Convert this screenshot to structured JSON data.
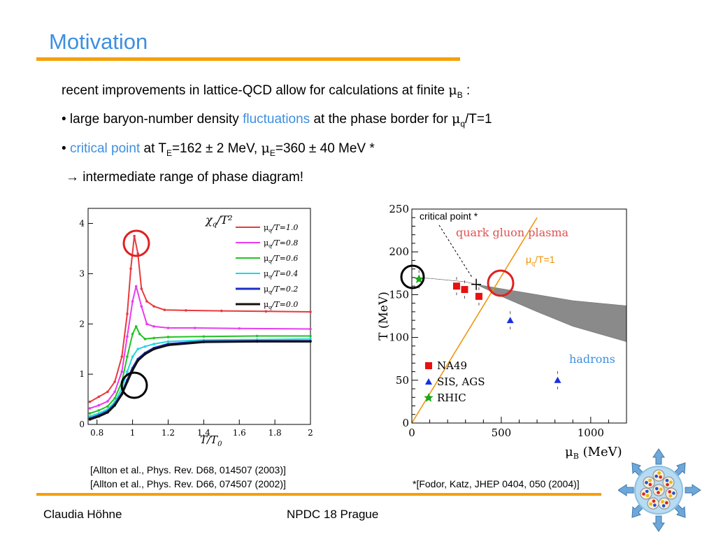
{
  "slide": {
    "title": "Motivation",
    "line1": "recent improvements in lattice-QCD allow for calculations at finite",
    "line1_mu": "μ",
    "line1_sub": "B",
    "line1_end": " :",
    "line2_pre": "• large baryon-number density ",
    "line2_hl": "fluctuations",
    "line2_post": " at the phase border for ",
    "line2_mu": "μ",
    "line2_sub": "q",
    "line2_end": "/T=1",
    "line3_pre": "• ",
    "line3_hl": "critical point",
    "line3_a": " at T",
    "line3_sub1": "E",
    "line3_b": "=162 ± 2 MeV, ",
    "line3_mu": "μ",
    "line3_sub2": "E",
    "line3_c": "=360 ± 40 MeV *",
    "line4": "→ intermediate range of phase diagram!",
    "cite1": "[Allton et al., Phys. Rev. D68, 014507 (2003)]",
    "cite2": "[Allton et al., Phys. Rev. D66, 074507 (2002)]",
    "cite3": "*[Fodor, Katz, JHEP 0404, 050  (2004)]",
    "footer_left": "Claudia Höhne",
    "footer_center": "NPDC 18 Prague"
  },
  "colors": {
    "accent_blue": "#3d8fe0",
    "accent_orange": "#f5a000",
    "circle_red": "#e02020",
    "circle_black": "#000000"
  },
  "chart_data": [
    {
      "type": "line",
      "ylabel_main": "χ",
      "ylabel_sub": "q",
      "ylabel_rest": "/T²",
      "xlabel_main": "T/T",
      "xlabel_sub": "0",
      "xlim": [
        0.75,
        2.0
      ],
      "ylim": [
        0,
        4.3
      ],
      "xticks": [
        "0.8",
        "1",
        "1.2",
        "1.4",
        "1.6",
        "1.8",
        "2"
      ],
      "xtick_values": [
        0.8,
        1.0,
        1.2,
        1.4,
        1.6,
        1.8,
        2.0
      ],
      "yticks": [
        "0",
        "1",
        "2",
        "3",
        "4"
      ],
      "ytick_values": [
        0,
        1,
        2,
        3,
        4
      ],
      "legend_position": "top-right",
      "series": [
        {
          "name_mu": "μ",
          "name_sub": "q",
          "name_rest": "/T=1.0",
          "color": "#e8393d",
          "x": [
            0.76,
            0.81,
            0.86,
            0.9,
            0.94,
            0.97,
            0.99,
            1.01,
            1.03,
            1.05,
            1.08,
            1.12,
            1.18,
            1.3,
            1.5,
            1.75,
            2.0
          ],
          "y": [
            0.45,
            0.55,
            0.65,
            0.85,
            1.35,
            2.2,
            3.1,
            3.75,
            3.4,
            2.7,
            2.45,
            2.35,
            2.28,
            2.27,
            2.26,
            2.25,
            2.24
          ]
        },
        {
          "name_mu": "μ",
          "name_sub": "q",
          "name_rest": "/T=0.8",
          "color": "#e83cf0",
          "x": [
            0.76,
            0.81,
            0.86,
            0.9,
            0.94,
            0.97,
            1.0,
            1.02,
            1.05,
            1.08,
            1.12,
            1.2,
            1.35,
            1.6,
            2.0
          ],
          "y": [
            0.32,
            0.38,
            0.46,
            0.65,
            1.05,
            1.75,
            2.45,
            2.75,
            2.35,
            2.0,
            1.95,
            1.92,
            1.92,
            1.91,
            1.9
          ]
        },
        {
          "name_mu": "μ",
          "name_sub": "q",
          "name_rest": "/T=0.6",
          "color": "#22c322",
          "x": [
            0.76,
            0.81,
            0.86,
            0.9,
            0.94,
            0.97,
            1.0,
            1.02,
            1.04,
            1.07,
            1.12,
            1.2,
            1.4,
            1.7,
            2.0
          ],
          "y": [
            0.22,
            0.28,
            0.36,
            0.52,
            0.85,
            1.35,
            1.8,
            1.95,
            1.8,
            1.7,
            1.72,
            1.74,
            1.75,
            1.76,
            1.76
          ]
        },
        {
          "name_mu": "μ",
          "name_sub": "q",
          "name_rest": "/T=0.4",
          "color": "#1ed8e0",
          "x": [
            0.76,
            0.81,
            0.86,
            0.9,
            0.94,
            0.97,
            1.0,
            1.03,
            1.07,
            1.12,
            1.2,
            1.4,
            1.7,
            2.0
          ],
          "y": [
            0.16,
            0.22,
            0.3,
            0.45,
            0.72,
            1.05,
            1.35,
            1.5,
            1.55,
            1.6,
            1.65,
            1.68,
            1.69,
            1.7
          ]
        },
        {
          "name_mu": "μ",
          "name_sub": "q",
          "name_rest": "/T=0.2",
          "color": "#1c2fc4",
          "x": [
            0.76,
            0.81,
            0.86,
            0.9,
            0.94,
            0.97,
            1.0,
            1.03,
            1.07,
            1.12,
            1.2,
            1.4,
            1.7,
            2.0
          ],
          "y": [
            0.12,
            0.18,
            0.26,
            0.4,
            0.62,
            0.88,
            1.12,
            1.3,
            1.42,
            1.52,
            1.6,
            1.65,
            1.66,
            1.66
          ]
        },
        {
          "name_mu": "μ",
          "name_sub": "q",
          "name_rest": "/T=0.0",
          "color": "#111111",
          "x": [
            0.76,
            0.81,
            0.86,
            0.9,
            0.94,
            0.97,
            1.0,
            1.03,
            1.07,
            1.12,
            1.2,
            1.4,
            1.7,
            2.0
          ],
          "y": [
            0.1,
            0.16,
            0.24,
            0.38,
            0.6,
            0.85,
            1.08,
            1.27,
            1.4,
            1.5,
            1.58,
            1.64,
            1.65,
            1.65
          ]
        }
      ]
    },
    {
      "type": "scatter",
      "xlabel_mu": "μ",
      "xlabel_sub": "B",
      "xlabel_rest": " (MeV)",
      "ylabel": "T (MeV)",
      "xlim": [
        0,
        1200
      ],
      "ylim": [
        0,
        250
      ],
      "xticks": [
        "0",
        "500",
        "1000"
      ],
      "xtick_values": [
        0,
        500,
        1000
      ],
      "yticks": [
        "0",
        "50",
        "100",
        "150",
        "200",
        "250"
      ],
      "ytick_values": [
        0,
        50,
        100,
        150,
        200,
        250
      ],
      "region_labels": {
        "qgp": "quark gluon plasma",
        "hadrons": "hadrons"
      },
      "annotation_critical": "critical point *",
      "annotation_line_mu": "μ",
      "annotation_line_sub": "q",
      "annotation_line_rest": "/T=1",
      "critical_point": {
        "x": 360,
        "y": 162
      },
      "line_muq_T1": {
        "x": [
          0,
          700
        ],
        "y": [
          0,
          240
        ]
      },
      "band_upper": {
        "x": [
          0,
          100,
          200,
          300,
          360,
          500,
          700,
          900,
          1200
        ],
        "y": [
          170,
          169,
          167,
          165,
          162,
          157,
          150,
          143,
          137
        ]
      },
      "band_lower": {
        "x": [
          0,
          100,
          200,
          300,
          360,
          500,
          700,
          900,
          1200
        ],
        "y": [
          170,
          169,
          167,
          165,
          162,
          148,
          130,
          113,
          95
        ]
      },
      "legend_position": "bottom-left",
      "series": [
        {
          "name": "NA49",
          "marker": "square",
          "color": "#e81010",
          "x": [
            250,
            295,
            375
          ],
          "y": [
            160,
            156,
            148
          ]
        },
        {
          "name": "SIS, AGS",
          "marker": "triangle",
          "color": "#1a2ee0",
          "x": [
            550,
            815
          ],
          "y": [
            120,
            50
          ]
        },
        {
          "name": "RHIC",
          "marker": "star",
          "color": "#18a818",
          "x": [
            40
          ],
          "y": [
            168
          ]
        }
      ]
    }
  ]
}
